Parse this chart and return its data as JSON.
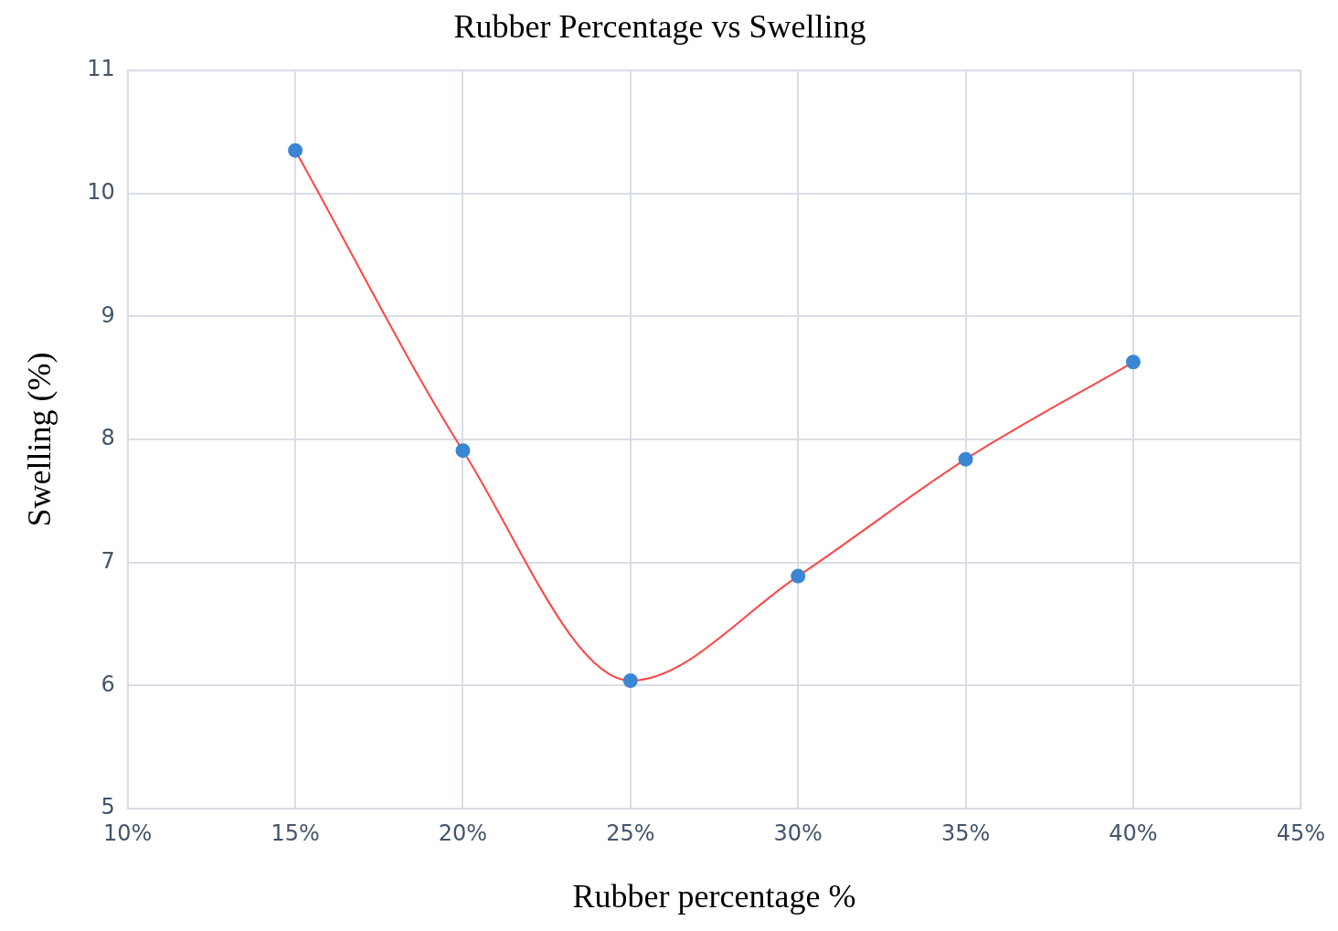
{
  "chart_data": {
    "type": "line",
    "title": "Rubber Percentage vs Swelling",
    "xlabel": "Rubber percentage %",
    "ylabel": "Swelling (%)",
    "x": [
      15,
      20,
      25,
      30,
      35,
      40
    ],
    "series": [
      {
        "color": "#ff4545",
        "colors": [
          "#3b86d4",
          "#3b86d4",
          "#3b86d4",
          "#3b86d4",
          "#3b86d4",
          "#3b86d4"
        ],
        "values": [
          10.35,
          7.91,
          6.04,
          6.89,
          7.84,
          8.63
        ]
      }
    ],
    "xlim": [
      10,
      45
    ],
    "xticks": [
      {
        "value": 10,
        "label": "10%"
      },
      {
        "value": 15,
        "label": "15%"
      },
      {
        "value": 20,
        "label": "20%"
      },
      {
        "value": 25,
        "label": "25%"
      },
      {
        "value": 30,
        "label": "30%"
      },
      {
        "value": 35,
        "label": "35%"
      },
      {
        "value": 40,
        "label": "40%"
      },
      {
        "value": 45,
        "label": "45%"
      }
    ],
    "ylim": [
      5,
      11
    ],
    "yticks": [
      5,
      6,
      7,
      8,
      9,
      10,
      11
    ],
    "grid": true,
    "legend": false,
    "marker": "circle",
    "line_style": "solid"
  }
}
